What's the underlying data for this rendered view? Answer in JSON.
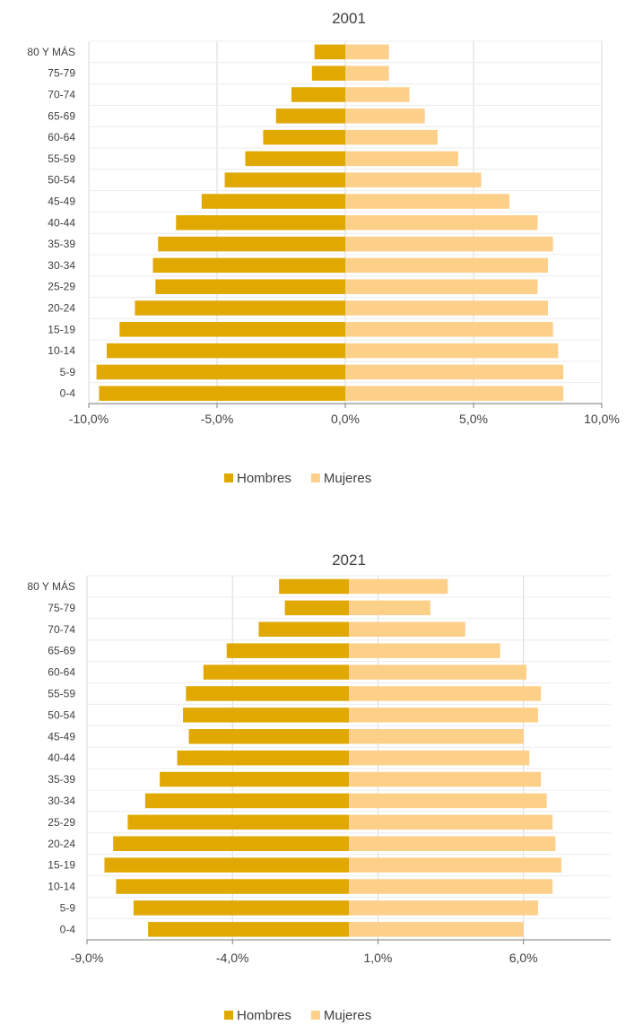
{
  "chart_data": [
    {
      "type": "bar",
      "orientation": "horizontal",
      "title": "2001",
      "categories": [
        "80 Y MÁS",
        "75-79",
        "70-74",
        "65-69",
        "60-64",
        "55-59",
        "50-54",
        "45-49",
        "40-44",
        "35-39",
        "30-34",
        "25-29",
        "20-24",
        "15-19",
        "10-14",
        "5-9",
        "0-4"
      ],
      "series": [
        {
          "name": "Hombres",
          "color": "#e0a800",
          "values": [
            -1.2,
            -1.3,
            -2.1,
            -2.7,
            -3.2,
            -3.9,
            -4.7,
            -5.6,
            -6.6,
            -7.3,
            -7.5,
            -7.4,
            -8.2,
            -8.8,
            -9.3,
            -9.7,
            -9.6
          ]
        },
        {
          "name": "Mujeres",
          "color": "#fdd08a",
          "values": [
            1.7,
            1.7,
            2.5,
            3.1,
            3.6,
            4.4,
            5.3,
            6.4,
            7.5,
            8.1,
            7.9,
            7.5,
            7.9,
            8.1,
            8.3,
            8.5,
            8.5
          ]
        }
      ],
      "xlim": [
        -10,
        10
      ],
      "xticks": [
        "-10,0%",
        "-5,0%",
        "0,0%",
        "5,0%",
        "10,0%"
      ],
      "grid": true,
      "legend_position": "bottom"
    },
    {
      "type": "bar",
      "orientation": "horizontal",
      "title": "2021",
      "categories": [
        "80 Y MÁS",
        "75-79",
        "70-74",
        "65-69",
        "60-64",
        "55-59",
        "50-54",
        "45-49",
        "40-44",
        "35-39",
        "30-34",
        "25-29",
        "20-24",
        "15-19",
        "10-14",
        "5-9",
        "0-4"
      ],
      "series": [
        {
          "name": "Hombres",
          "color": "#e0a800",
          "values": [
            -2.4,
            -2.2,
            -3.1,
            -4.2,
            -5.0,
            -5.6,
            -5.7,
            -5.5,
            -5.9,
            -6.5,
            -7.0,
            -7.6,
            -8.1,
            -8.4,
            -8.0,
            -7.4,
            -6.9
          ]
        },
        {
          "name": "Mujeres",
          "color": "#fdd08a",
          "values": [
            3.4,
            2.8,
            4.0,
            5.2,
            6.1,
            6.6,
            6.5,
            6.0,
            6.2,
            6.6,
            6.8,
            7.0,
            7.1,
            7.3,
            7.0,
            6.5,
            6.0
          ]
        }
      ],
      "xlim": [
        -9,
        9
      ],
      "xticks": [
        "-9,0%",
        "-4,0%",
        "1,0%",
        "6,0%"
      ],
      "xtick_values": [
        -9,
        -4,
        1,
        6
      ],
      "grid": true,
      "legend_position": "bottom"
    }
  ]
}
